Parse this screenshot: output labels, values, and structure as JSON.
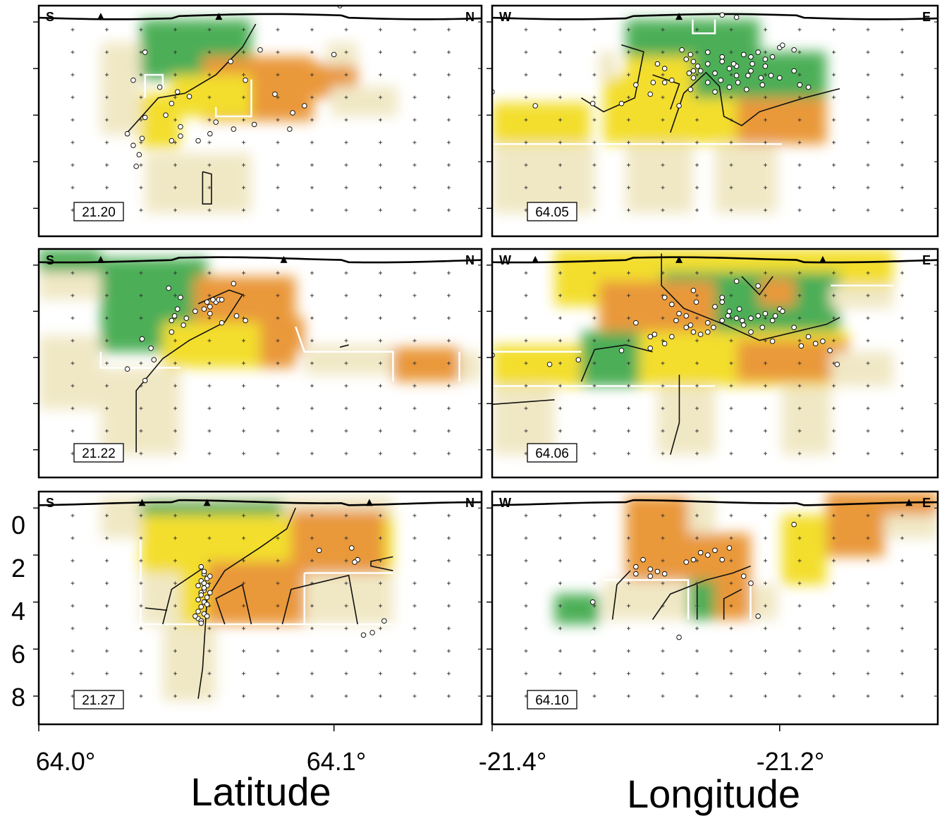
{
  "chart_data": {
    "type": "heatmap",
    "x_axis_titles": {
      "left": "Latitude",
      "right": "Longitude"
    },
    "x_ticks": {
      "left": [
        {
          "value": 64.0,
          "label": "64.0°"
        },
        {
          "value": 64.1,
          "label": "64.1°"
        }
      ],
      "right": [
        {
          "value": -21.4,
          "label": "-21.4°"
        },
        {
          "value": -21.2,
          "label": "-21.2°"
        }
      ]
    },
    "x_range": {
      "left": [
        64.0,
        64.15
      ],
      "right": [
        -21.4,
        -21.09
      ]
    },
    "y_ticks": [
      {
        "value": 0,
        "label": "0"
      },
      {
        "value": 2,
        "label": "2"
      },
      {
        "value": 4,
        "label": "4"
      },
      {
        "value": 6,
        "label": "6"
      },
      {
        "value": 8,
        "label": "8"
      }
    ],
    "y_range": [
      -0.7,
      9.2
    ],
    "y_reversed": true,
    "grid": "crosses",
    "colors": {
      "green": "#3ea84a",
      "yellow": "#f2dc1a",
      "orange": "#e8902a",
      "pale": "#efe6c0"
    },
    "panels": [
      {
        "id": "p-21-20",
        "column": "left",
        "row": 0,
        "slice_label": "21.20",
        "end_labels": [
          "S",
          "N"
        ],
        "stations": [
          64.021,
          64.061
        ],
        "events": [
          [
            64.047,
            3.0
          ],
          [
            64.036,
            4.1
          ],
          [
            64.045,
            3.5
          ],
          [
            64.03,
            4.8
          ],
          [
            64.032,
            5.3
          ],
          [
            64.035,
            5.0
          ],
          [
            64.06,
            4.3
          ],
          [
            64.058,
            4.8
          ],
          [
            64.066,
            4.6
          ],
          [
            64.07,
            2.5
          ],
          [
            64.065,
            1.7
          ],
          [
            64.073,
            4.4
          ],
          [
            64.08,
            3.1
          ],
          [
            64.085,
            4.6
          ],
          [
            64.09,
            3.6
          ],
          [
            64.1,
            1.4
          ],
          [
            64.075,
            1.2
          ],
          [
            64.041,
            2.8
          ],
          [
            64.045,
            5.1
          ],
          [
            64.048,
            4.9
          ],
          [
            64.043,
            4.0
          ],
          [
            64.051,
            3.2
          ],
          [
            64.048,
            4.5
          ],
          [
            64.033,
            6.2
          ],
          [
            64.034,
            5.7
          ],
          [
            64.054,
            5.1
          ],
          [
            64.086,
            3.9
          ],
          [
            64.102,
            -0.7
          ],
          [
            64.036,
            1.3
          ],
          [
            64.032,
            2.5
          ]
        ]
      },
      {
        "id": "p-64-05",
        "column": "right",
        "row": 0,
        "slice_label": "64.05",
        "end_labels": [
          "W",
          "E"
        ],
        "stations": [
          -21.27
        ],
        "events": [
          [
            -21.4,
            3.0
          ],
          [
            -21.33,
            3.5
          ],
          [
            -21.3,
            2.7
          ],
          [
            -21.29,
            3.1
          ],
          [
            -21.28,
            2.6
          ],
          [
            -21.26,
            2.1
          ],
          [
            -21.265,
            1.6
          ],
          [
            -21.285,
            1.8
          ],
          [
            -21.27,
            3.6
          ],
          [
            -21.26,
            2.4
          ],
          [
            -21.25,
            1.8
          ],
          [
            -21.24,
            1.7
          ],
          [
            -21.23,
            1.9
          ],
          [
            -21.22,
            1.5
          ],
          [
            -21.21,
            1.6
          ],
          [
            -21.2,
            1.1
          ],
          [
            -21.19,
            1.2
          ],
          [
            -21.245,
            2.2
          ],
          [
            -21.235,
            2.0
          ],
          [
            -21.255,
            2.1
          ],
          [
            -21.275,
            2.5
          ],
          [
            -21.262,
            2.9
          ],
          [
            -21.25,
            2.6
          ],
          [
            -21.23,
            2.3
          ],
          [
            -21.22,
            2.1
          ],
          [
            -21.21,
            1.9
          ],
          [
            -21.225,
            1.4
          ],
          [
            -21.215,
            1.3
          ],
          [
            -21.24,
            1.5
          ],
          [
            -21.26,
            1.7
          ],
          [
            -21.28,
            2.0
          ],
          [
            -21.25,
            1.3
          ],
          [
            -21.2,
            2.4
          ],
          [
            -21.19,
            2.1
          ],
          [
            -21.18,
            2.8
          ],
          [
            -21.235,
            2.8
          ],
          [
            -21.222,
            2.3
          ],
          [
            -21.213,
            2.4
          ],
          [
            -21.31,
            3.5
          ],
          [
            -21.37,
            3.6
          ],
          [
            -21.24,
            -0.3
          ],
          [
            -21.23,
            -0.2
          ],
          [
            -21.232,
            1.8
          ],
          [
            -21.212,
            2.7
          ],
          [
            -21.268,
            1.2
          ],
          [
            -21.262,
            1.4
          ],
          [
            -21.257,
            1.9
          ],
          [
            -21.241,
            2.5
          ],
          [
            -21.229,
            2.6
          ],
          [
            -21.219,
            1.8
          ],
          [
            -21.205,
            1.5
          ],
          [
            -21.198,
            1.0
          ],
          [
            -21.206,
            2.3
          ],
          [
            -21.245,
            3.0
          ],
          [
            -21.263,
            2.2
          ],
          [
            -21.288,
            2.6
          ],
          [
            -21.223,
            2.9
          ],
          [
            -21.186,
            2.7
          ]
        ]
      },
      {
        "id": "p-21-22",
        "column": "left",
        "row": 1,
        "slice_label": "21.22",
        "end_labels": [
          "S",
          "N"
        ],
        "stations": [
          64.021,
          64.083
        ],
        "events": [
          [
            64.036,
            5.0
          ],
          [
            64.038,
            3.6
          ],
          [
            64.045,
            2.4
          ],
          [
            64.047,
            1.9
          ],
          [
            64.05,
            2.3
          ],
          [
            64.053,
            2.0
          ],
          [
            64.057,
            1.6
          ],
          [
            64.058,
            1.8
          ],
          [
            64.06,
            1.6
          ],
          [
            64.061,
            1.5
          ],
          [
            64.062,
            1.5
          ],
          [
            64.059,
            1.5
          ],
          [
            64.045,
            2.9
          ],
          [
            64.049,
            2.6
          ],
          [
            64.066,
            0.8
          ],
          [
            64.067,
            2.2
          ],
          [
            64.062,
            2.5
          ],
          [
            64.056,
            1.9
          ],
          [
            64.058,
            2.1
          ],
          [
            64.046,
            2.2
          ],
          [
            64.048,
            1.4
          ],
          [
            64.039,
            4.1
          ],
          [
            64.044,
            1.0
          ],
          [
            64.07,
            2.4
          ],
          [
            64.03,
            4.5
          ],
          [
            64.035,
            3.2
          ]
        ]
      },
      {
        "id": "p-64-06",
        "column": "right",
        "row": 1,
        "slice_label": "64.06",
        "end_labels": [
          "W",
          "E"
        ],
        "stations": [
          -21.37,
          -21.27,
          -21.17
        ],
        "events": [
          [
            -21.3,
            2.5
          ],
          [
            -21.29,
            3.1
          ],
          [
            -21.28,
            3.4
          ],
          [
            -21.275,
            1.7
          ],
          [
            -21.27,
            2.1
          ],
          [
            -21.265,
            2.7
          ],
          [
            -21.26,
            2.9
          ],
          [
            -21.255,
            3.0
          ],
          [
            -21.25,
            2.5
          ],
          [
            -21.245,
            1.8
          ],
          [
            -21.24,
            1.6
          ],
          [
            -21.235,
            2.0
          ],
          [
            -21.23,
            2.3
          ],
          [
            -21.225,
            2.6
          ],
          [
            -21.22,
            2.9
          ],
          [
            -21.215,
            2.2
          ],
          [
            -21.21,
            2.1
          ],
          [
            -21.205,
            2.4
          ],
          [
            -21.2,
            1.9
          ],
          [
            -21.19,
            2.7
          ],
          [
            -21.18,
            3.1
          ],
          [
            -21.17,
            3.3
          ],
          [
            -21.165,
            3.7
          ],
          [
            -21.16,
            4.3
          ],
          [
            -21.24,
            1.4
          ],
          [
            -21.26,
            1.1
          ],
          [
            -21.215,
            0.9
          ],
          [
            -21.23,
            0.7
          ],
          [
            -21.205,
            3.3
          ],
          [
            -21.185,
            3.5
          ],
          [
            -21.175,
            3.4
          ],
          [
            -21.28,
            1.4
          ],
          [
            -21.275,
            3.1
          ],
          [
            -21.265,
            2.2
          ],
          [
            -21.258,
            1.6
          ],
          [
            -21.25,
            2.9
          ],
          [
            -21.24,
            2.4
          ],
          [
            -21.228,
            1.9
          ],
          [
            -21.22,
            2.3
          ],
          [
            -21.212,
            2.7
          ],
          [
            -21.198,
            2.0
          ],
          [
            -21.31,
            3.7
          ],
          [
            -21.34,
            4.1
          ],
          [
            -21.36,
            4.3
          ],
          [
            -21.4,
            3.9
          ],
          [
            -21.29,
            3.6
          ],
          [
            -21.272,
            2.4
          ],
          [
            -21.262,
            2.6
          ],
          [
            -21.246,
            2.7
          ],
          [
            -21.236,
            2.2
          ],
          [
            -21.226,
            2.4
          ],
          [
            -21.203,
            2.2
          ],
          [
            -21.287,
            3.0
          ]
        ]
      },
      {
        "id": "p-21-27",
        "column": "left",
        "row": 2,
        "slice_label": "21.27",
        "end_labels": [
          "S",
          "N"
        ],
        "stations": [
          64.035,
          64.057,
          64.112
        ],
        "events": [
          [
            64.055,
            2.5
          ],
          [
            64.056,
            2.8
          ],
          [
            64.057,
            3.0
          ],
          [
            64.055,
            3.1
          ],
          [
            64.057,
            3.3
          ],
          [
            64.056,
            3.5
          ],
          [
            64.055,
            3.6
          ],
          [
            64.057,
            3.8
          ],
          [
            64.056,
            4.0
          ],
          [
            64.055,
            4.2
          ],
          [
            64.054,
            4.4
          ],
          [
            64.056,
            4.5
          ],
          [
            64.054,
            4.7
          ],
          [
            64.055,
            4.8
          ],
          [
            64.056,
            2.7
          ],
          [
            64.058,
            2.9
          ],
          [
            64.054,
            3.3
          ],
          [
            64.058,
            3.6
          ],
          [
            64.057,
            4.1
          ],
          [
            64.053,
            4.6
          ],
          [
            64.055,
            4.9
          ],
          [
            64.054,
            3.9
          ],
          [
            64.057,
            4.6
          ],
          [
            64.095,
            1.8
          ],
          [
            64.106,
            1.7
          ],
          [
            64.108,
            2.2
          ],
          [
            64.107,
            2.3
          ],
          [
            64.117,
            4.8
          ],
          [
            64.11,
            5.4
          ],
          [
            64.113,
            5.3
          ],
          [
            64.056,
            3.2
          ],
          [
            64.056,
            3.4
          ],
          [
            64.055,
            3.7
          ]
        ]
      },
      {
        "id": "p-64-10",
        "column": "right",
        "row": 2,
        "slice_label": "64.10",
        "end_labels": [
          "W",
          "E"
        ],
        "stations": [
          -21.11
        ],
        "events": [
          [
            -21.33,
            4.0
          ],
          [
            -21.3,
            2.5
          ],
          [
            -21.29,
            2.6
          ],
          [
            -21.295,
            2.2
          ],
          [
            -21.29,
            2.9
          ],
          [
            -21.285,
            2.7
          ],
          [
            -21.28,
            2.8
          ],
          [
            -21.26,
            2.2
          ],
          [
            -21.255,
            1.9
          ],
          [
            -21.25,
            2.0
          ],
          [
            -21.245,
            1.8
          ],
          [
            -21.24,
            2.2
          ],
          [
            -21.235,
            1.7
          ],
          [
            -21.225,
            2.9
          ],
          [
            -21.22,
            3.2
          ],
          [
            -21.215,
            4.6
          ],
          [
            -21.19,
            0.7
          ],
          [
            -21.27,
            5.5
          ],
          [
            -21.265,
            2.3
          ],
          [
            -21.3,
            2.8
          ]
        ]
      }
    ]
  }
}
